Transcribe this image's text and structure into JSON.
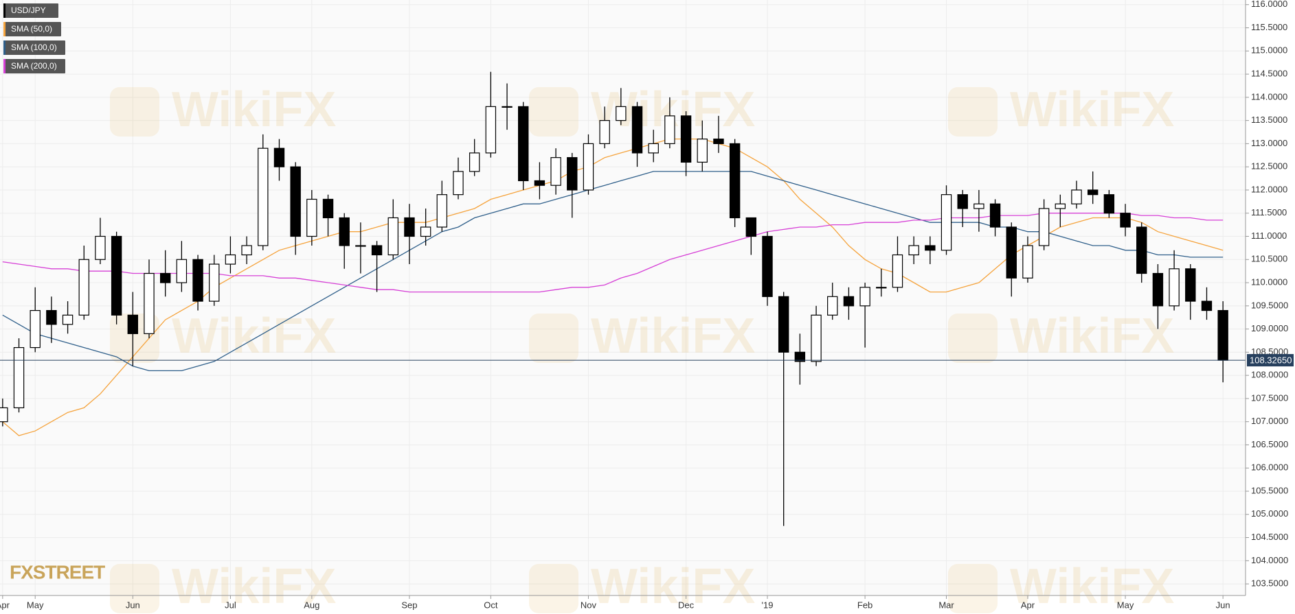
{
  "chart_data": {
    "type": "candlestick",
    "watermark": "WikiFX",
    "brand": "FXSTREET",
    "categories": [
      "Apr",
      null,
      "May",
      null,
      null,
      null,
      null,
      null,
      "Jun",
      null,
      null,
      null,
      null,
      null,
      "Jul",
      null,
      null,
      null,
      null,
      "Aug",
      null,
      null,
      null,
      null,
      null,
      "Sep",
      null,
      null,
      null,
      null,
      "Oct",
      null,
      null,
      null,
      null,
      null,
      "Nov",
      null,
      null,
      null,
      null,
      null,
      "Dec",
      null,
      null,
      null,
      null,
      "'19",
      null,
      null,
      null,
      null,
      null,
      "Feb",
      null,
      null,
      null,
      null,
      "Mar",
      null,
      null,
      null,
      null,
      "Apr",
      null,
      null,
      null,
      null,
      null,
      "May",
      null,
      null,
      null,
      null,
      null,
      "Jun"
    ],
    "candles": {
      "name": "USD/JPY",
      "color": "#000000",
      "up_color": "#ffffff",
      "down_color": "#000000",
      "open": [
        107.0,
        107.3,
        108.6,
        109.4,
        109.1,
        109.3,
        110.5,
        111.0,
        109.3,
        108.9,
        110.2,
        110.0,
        110.5,
        109.6,
        110.4,
        110.6,
        110.8,
        112.9,
        112.5,
        111.0,
        111.8,
        111.4,
        110.8,
        110.8,
        110.6,
        111.4,
        111.0,
        111.2,
        111.9,
        112.4,
        112.8,
        113.8,
        113.8,
        112.2,
        112.1,
        112.7,
        112.0,
        113.0,
        113.5,
        113.8,
        112.8,
        113.0,
        113.6,
        112.6,
        113.1,
        113.0,
        111.4,
        111.0,
        109.7,
        108.5,
        108.3,
        109.3,
        109.7,
        109.5,
        109.9,
        109.9,
        110.6,
        110.8,
        110.7,
        111.9,
        111.6,
        111.7,
        111.2,
        110.1,
        110.8,
        111.6,
        111.7,
        112.0,
        111.9,
        111.5,
        111.2,
        110.2,
        109.5,
        110.3,
        109.6,
        109.4
      ],
      "high": [
        107.5,
        108.8,
        109.9,
        109.7,
        109.6,
        110.8,
        111.4,
        111.1,
        109.8,
        110.5,
        110.7,
        110.9,
        110.6,
        110.6,
        111.0,
        111.0,
        113.2,
        113.1,
        112.6,
        112.0,
        111.9,
        111.5,
        111.3,
        110.9,
        111.8,
        111.7,
        111.6,
        112.2,
        112.7,
        113.1,
        114.55,
        114.3,
        113.9,
        112.6,
        112.9,
        112.8,
        113.2,
        113.8,
        114.2,
        113.9,
        113.3,
        114.0,
        113.7,
        113.5,
        113.6,
        113.1,
        111.4,
        111.1,
        109.8,
        108.9,
        109.5,
        110.0,
        109.9,
        110.0,
        110.3,
        111.0,
        111.0,
        111.0,
        112.1,
        112.0,
        112.0,
        111.8,
        111.3,
        111.0,
        111.8,
        111.9,
        112.2,
        112.4,
        112.0,
        111.7,
        111.3,
        110.4,
        110.7,
        110.4,
        109.9,
        109.6
      ],
      "low": [
        106.9,
        107.2,
        108.5,
        108.7,
        108.9,
        109.2,
        110.4,
        109.1,
        108.2,
        108.8,
        109.7,
        109.8,
        109.4,
        109.5,
        110.2,
        110.4,
        110.7,
        112.2,
        110.6,
        110.8,
        111.0,
        110.3,
        110.2,
        109.8,
        110.5,
        110.4,
        110.8,
        111.1,
        111.8,
        112.3,
        112.7,
        113.3,
        112.0,
        111.8,
        111.9,
        111.4,
        111.9,
        112.9,
        113.4,
        112.5,
        112.6,
        112.9,
        112.3,
        112.4,
        112.8,
        111.2,
        110.6,
        109.5,
        104.75,
        107.8,
        108.2,
        109.2,
        109.2,
        108.6,
        109.7,
        109.8,
        110.4,
        110.4,
        110.6,
        111.2,
        111.1,
        111.0,
        109.7,
        110.0,
        110.7,
        111.2,
        111.6,
        111.7,
        111.4,
        111.0,
        110.0,
        109.0,
        109.4,
        109.2,
        109.2,
        107.85
      ],
      "close": [
        107.3,
        108.6,
        109.4,
        109.1,
        109.3,
        110.5,
        111.0,
        109.3,
        108.9,
        110.2,
        110.0,
        110.5,
        109.6,
        110.4,
        110.6,
        110.8,
        112.9,
        112.5,
        111.0,
        111.8,
        111.4,
        110.8,
        110.8,
        110.6,
        111.4,
        111.0,
        111.2,
        111.9,
        112.4,
        112.8,
        113.8,
        113.8,
        112.2,
        112.1,
        112.7,
        112.0,
        113.0,
        113.5,
        113.8,
        112.8,
        113.0,
        113.6,
        112.6,
        113.1,
        113.0,
        111.4,
        111.0,
        109.7,
        108.5,
        108.3,
        109.3,
        109.7,
        109.5,
        109.9,
        109.9,
        110.6,
        110.8,
        110.7,
        111.9,
        111.6,
        111.7,
        111.2,
        110.1,
        110.8,
        111.6,
        111.7,
        112.0,
        111.9,
        111.5,
        111.2,
        110.2,
        109.5,
        110.3,
        109.6,
        109.4,
        108.3265
      ]
    },
    "series": [
      {
        "name": "SMA (50,0)",
        "color": "#f5a33c",
        "values": [
          107.0,
          106.7,
          106.8,
          107.0,
          107.2,
          107.3,
          107.6,
          108.0,
          108.4,
          108.8,
          109.2,
          109.4,
          109.6,
          109.9,
          110.1,
          110.3,
          110.5,
          110.7,
          110.8,
          110.9,
          111.0,
          111.1,
          111.1,
          111.2,
          111.3,
          111.3,
          111.3,
          111.4,
          111.5,
          111.6,
          111.8,
          111.9,
          112.0,
          112.1,
          112.2,
          112.4,
          112.5,
          112.7,
          112.8,
          112.9,
          113.0,
          113.1,
          113.1,
          113.1,
          113.0,
          112.9,
          112.7,
          112.5,
          112.2,
          111.8,
          111.5,
          111.2,
          110.8,
          110.5,
          110.3,
          110.2,
          110.0,
          109.8,
          109.8,
          109.9,
          110.0,
          110.3,
          110.6,
          110.8,
          111.0,
          111.2,
          111.3,
          111.4,
          111.4,
          111.4,
          111.3,
          111.1,
          111.0,
          110.9,
          110.8,
          110.7
        ]
      },
      {
        "name": "SMA (100,0)",
        "color": "#2f5f8a",
        "values": [
          109.3,
          109.1,
          108.9,
          108.8,
          108.7,
          108.6,
          108.5,
          108.4,
          108.2,
          108.1,
          108.1,
          108.1,
          108.2,
          108.3,
          108.5,
          108.7,
          108.9,
          109.1,
          109.3,
          109.5,
          109.7,
          109.9,
          110.1,
          110.3,
          110.5,
          110.7,
          110.9,
          111.1,
          111.2,
          111.4,
          111.5,
          111.6,
          111.7,
          111.7,
          111.8,
          111.9,
          112.0,
          112.1,
          112.2,
          112.3,
          112.4,
          112.4,
          112.4,
          112.4,
          112.4,
          112.4,
          112.4,
          112.3,
          112.2,
          112.1,
          112.0,
          111.9,
          111.8,
          111.7,
          111.6,
          111.5,
          111.4,
          111.3,
          111.3,
          111.3,
          111.3,
          111.2,
          111.2,
          111.1,
          111.1,
          111.0,
          110.9,
          110.8,
          110.8,
          110.7,
          110.7,
          110.6,
          110.6,
          110.55,
          110.55,
          110.55
        ]
      },
      {
        "name": "SMA (200,0)",
        "color": "#d63fd6",
        "values": [
          110.45,
          110.4,
          110.35,
          110.3,
          110.3,
          110.25,
          110.25,
          110.25,
          110.2,
          110.2,
          110.2,
          110.2,
          110.2,
          110.2,
          110.15,
          110.15,
          110.15,
          110.1,
          110.1,
          110.05,
          110.0,
          109.95,
          109.9,
          109.85,
          109.85,
          109.8,
          109.8,
          109.8,
          109.8,
          109.8,
          109.8,
          109.8,
          109.8,
          109.8,
          109.85,
          109.9,
          109.9,
          109.95,
          110.1,
          110.2,
          110.35,
          110.5,
          110.6,
          110.7,
          110.8,
          110.9,
          111.0,
          111.1,
          111.15,
          111.2,
          111.2,
          111.25,
          111.25,
          111.3,
          111.3,
          111.3,
          111.35,
          111.35,
          111.4,
          111.4,
          111.4,
          111.45,
          111.45,
          111.45,
          111.5,
          111.5,
          111.5,
          111.5,
          111.5,
          111.5,
          111.45,
          111.45,
          111.4,
          111.4,
          111.35,
          111.35
        ]
      }
    ],
    "last_price": {
      "value": 108.3265,
      "label": "108.32650",
      "color": "#27405e"
    },
    "ylim": [
      103.25,
      116.1
    ],
    "yticks": [
      {
        "value": 116,
        "label": "116.0000"
      },
      {
        "value": 115.5,
        "label": "115.5000"
      },
      {
        "value": 115,
        "label": "115.0000"
      },
      {
        "value": 114.5,
        "label": "114.5000"
      },
      {
        "value": 114,
        "label": "114.0000"
      },
      {
        "value": 113.5,
        "label": "113.5000"
      },
      {
        "value": 113,
        "label": "113.0000"
      },
      {
        "value": 112.5,
        "label": "112.5000"
      },
      {
        "value": 112,
        "label": "112.0000"
      },
      {
        "value": 111.5,
        "label": "111.5000"
      },
      {
        "value": 111,
        "label": "111.0000"
      },
      {
        "value": 110.5,
        "label": "110.5000"
      },
      {
        "value": 110,
        "label": "110.0000"
      },
      {
        "value": 109.5,
        "label": "109.5000"
      },
      {
        "value": 109,
        "label": "109.0000"
      },
      {
        "value": 108.5,
        "label": "108.5000"
      },
      {
        "value": 108,
        "label": "108.0000"
      },
      {
        "value": 107.5,
        "label": "107.5000"
      },
      {
        "value": 107,
        "label": "107.0000"
      },
      {
        "value": 106.5,
        "label": "106.5000"
      },
      {
        "value": 106,
        "label": "106.0000"
      },
      {
        "value": 105.5,
        "label": "105.5000"
      },
      {
        "value": 105,
        "label": "105.0000"
      },
      {
        "value": 104.5,
        "label": "104.5000"
      },
      {
        "value": 104,
        "label": "104.0000"
      },
      {
        "value": 103.5,
        "label": "103.5000"
      }
    ],
    "grid": true
  }
}
